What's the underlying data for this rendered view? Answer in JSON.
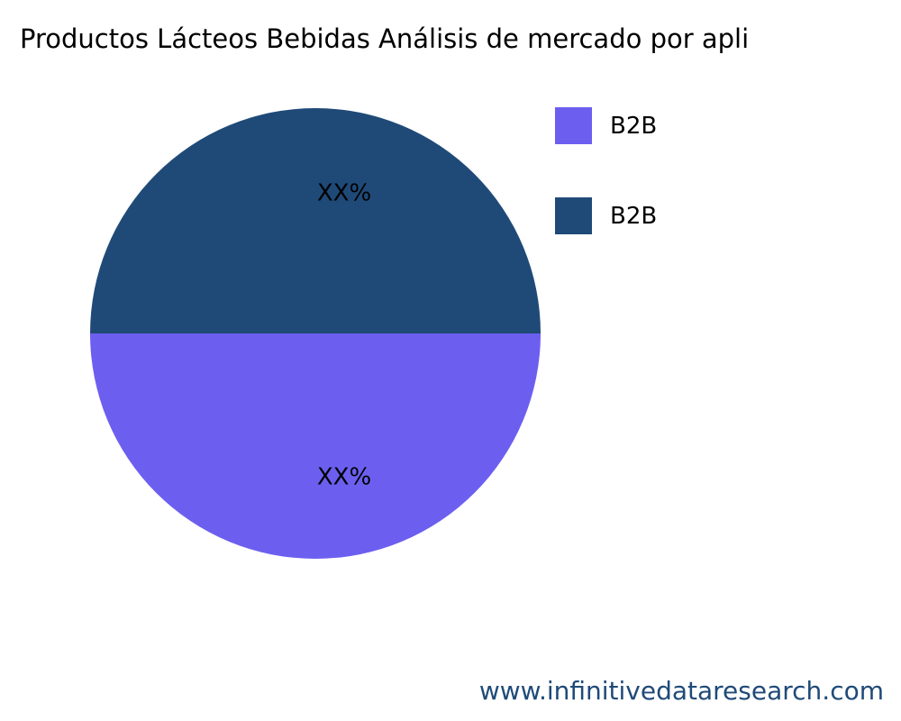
{
  "chart_data": {
    "type": "pie",
    "title": "Productos Lácteos Bebidas Análisis de mercado por apli",
    "slices": [
      {
        "name": "B2B",
        "value": 50,
        "label": "XX%",
        "color": "#6C5FF0"
      },
      {
        "name": "B2B",
        "value": 50,
        "label": "XX%",
        "color": "#1F4A78"
      }
    ],
    "legend_position": "top-right"
  },
  "watermark": "www.infinitivedataresearch.com"
}
